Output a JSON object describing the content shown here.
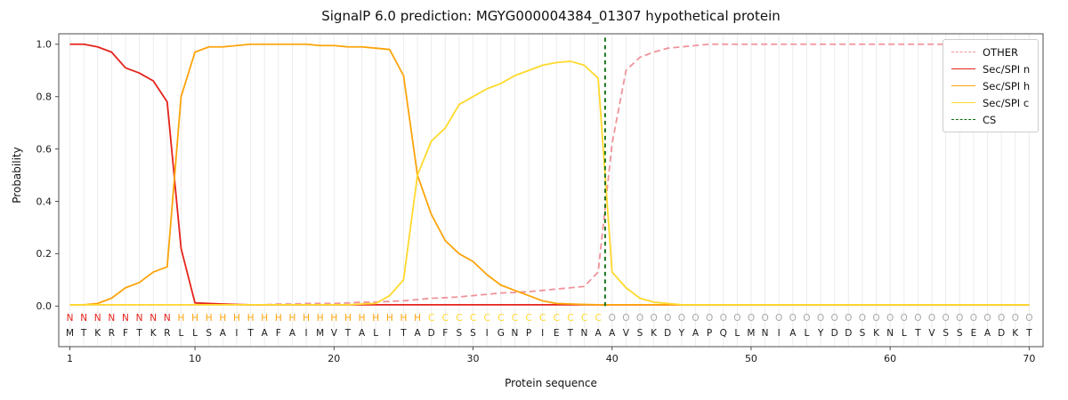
{
  "chart_data": {
    "type": "line",
    "title": "SignalP 6.0 prediction: MGYG000004384_01307 hypothetical protein",
    "xlabel": "Protein sequence",
    "ylabel": "Probability",
    "xlim": [
      0.2,
      71.0
    ],
    "ylim": [
      -0.155,
      1.04
    ],
    "xticks": [
      "1",
      "10",
      "20",
      "30",
      "40",
      "50",
      "60",
      "70"
    ],
    "yticks": [
      "0.0",
      "0.2",
      "0.4",
      "0.6",
      "0.8",
      "1.0"
    ],
    "grid": "vertical-per-residue",
    "legend_position": "upper right",
    "x": [
      1,
      2,
      3,
      4,
      5,
      6,
      7,
      8,
      9,
      10,
      11,
      12,
      13,
      14,
      15,
      16,
      17,
      18,
      19,
      20,
      21,
      22,
      23,
      24,
      25,
      26,
      27,
      28,
      29,
      30,
      31,
      32,
      33,
      34,
      35,
      36,
      37,
      38,
      39,
      40,
      41,
      42,
      43,
      44,
      45,
      46,
      47,
      48,
      49,
      50,
      51,
      52,
      53,
      54,
      55,
      56,
      57,
      58,
      59,
      60,
      61,
      62,
      63,
      64,
      65,
      66,
      67,
      68,
      69,
      70
    ],
    "series": [
      {
        "name": "OTHER",
        "color_key": "other",
        "style": "dashed",
        "values": [
          0.005,
          0.005,
          0.005,
          0.005,
          0.005,
          0.005,
          0.005,
          0.005,
          0.005,
          0.005,
          0.005,
          0.005,
          0.005,
          0.005,
          0.005,
          0.008,
          0.008,
          0.01,
          0.01,
          0.01,
          0.012,
          0.015,
          0.015,
          0.018,
          0.02,
          0.025,
          0.03,
          0.032,
          0.035,
          0.04,
          0.045,
          0.05,
          0.052,
          0.055,
          0.06,
          0.065,
          0.07,
          0.075,
          0.13,
          0.62,
          0.9,
          0.95,
          0.97,
          0.985,
          0.99,
          0.995,
          1.0,
          1.0,
          1.0,
          1.0,
          1.0,
          1.0,
          1.0,
          1.0,
          1.0,
          1.0,
          1.0,
          1.0,
          1.0,
          1.0,
          1.0,
          1.0,
          1.0,
          1.0,
          1.0,
          1.0,
          1.0,
          1.0,
          1.0,
          1.0
        ]
      },
      {
        "name": "Sec/SPI n",
        "color_key": "n",
        "style": "solid",
        "values": [
          1.0,
          1.0,
          0.99,
          0.97,
          0.91,
          0.89,
          0.86,
          0.78,
          0.22,
          0.012,
          0.01,
          0.008,
          0.006,
          0.005,
          0.005,
          0.005,
          0.005,
          0.005,
          0.005,
          0.005,
          0.005,
          0.005,
          0.005,
          0.005,
          0.005,
          0.005,
          0.005,
          0.005,
          0.005,
          0.005,
          0.005,
          0.005,
          0.005,
          0.005,
          0.005,
          0.005,
          0.005,
          0.005,
          0.005,
          0.005,
          0.005,
          0.005,
          0.005,
          0.005,
          0.005,
          0.005,
          0.005,
          0.005,
          0.005,
          0.005,
          0.005,
          0.005,
          0.005,
          0.005,
          0.005,
          0.005,
          0.005,
          0.005,
          0.005,
          0.005,
          0.005,
          0.005,
          0.005,
          0.005,
          0.005,
          0.005,
          0.005,
          0.005,
          0.005,
          0.005
        ]
      },
      {
        "name": "Sec/SPI h",
        "color_key": "h",
        "style": "solid",
        "values": [
          0.005,
          0.005,
          0.01,
          0.03,
          0.07,
          0.09,
          0.13,
          0.15,
          0.8,
          0.97,
          0.99,
          0.99,
          0.995,
          1.0,
          1.0,
          1.0,
          1.0,
          1.0,
          0.995,
          0.995,
          0.99,
          0.99,
          0.985,
          0.98,
          0.88,
          0.5,
          0.35,
          0.25,
          0.2,
          0.17,
          0.12,
          0.08,
          0.06,
          0.04,
          0.02,
          0.01,
          0.008,
          0.006,
          0.005,
          0.005,
          0.005,
          0.005,
          0.005,
          0.005,
          0.005,
          0.005,
          0.005,
          0.005,
          0.005,
          0.005,
          0.005,
          0.005,
          0.005,
          0.005,
          0.005,
          0.005,
          0.005,
          0.005,
          0.005,
          0.005,
          0.005,
          0.005,
          0.005,
          0.005,
          0.005,
          0.005,
          0.005,
          0.005,
          0.005,
          0.005
        ]
      },
      {
        "name": "Sec/SPI c",
        "color_key": "c",
        "style": "solid",
        "values": [
          0.005,
          0.005,
          0.005,
          0.005,
          0.005,
          0.005,
          0.005,
          0.005,
          0.005,
          0.005,
          0.005,
          0.005,
          0.005,
          0.005,
          0.005,
          0.005,
          0.005,
          0.005,
          0.005,
          0.005,
          0.005,
          0.008,
          0.01,
          0.04,
          0.1,
          0.5,
          0.63,
          0.68,
          0.77,
          0.8,
          0.83,
          0.85,
          0.88,
          0.9,
          0.92,
          0.93,
          0.935,
          0.92,
          0.87,
          0.13,
          0.07,
          0.03,
          0.015,
          0.01,
          0.005,
          0.005,
          0.005,
          0.005,
          0.005,
          0.005,
          0.005,
          0.005,
          0.005,
          0.005,
          0.005,
          0.005,
          0.005,
          0.005,
          0.005,
          0.005,
          0.005,
          0.005,
          0.005,
          0.005,
          0.005,
          0.005,
          0.005,
          0.005,
          0.005,
          0.005
        ]
      }
    ],
    "cs_line": {
      "name": "CS",
      "x": 39.5,
      "style": "dashed",
      "color_key": "cs"
    },
    "sequence": "MTKRFTKRLLSAITAFAIMVTALITADFSSIGNPIETNAAVSKDYAPQLMNIALYDDSKNLTVSSEADKT",
    "regions": "NNNNNNNNHHHHHHHHHHHHHHHHHHCCCCCCCCCCCCCOOOOOOOOOOOOOOOOOOOOOOOOOOOOOOO"
  },
  "colors": {
    "other": "#f0939b",
    "n": "#e5231b",
    "h": "#fca40a",
    "c": "#ffd92c",
    "cs": "#0b6b0b",
    "region_o": "#a8a8a8",
    "sequence_text": "#1a1a1a",
    "grid": "#ececec",
    "axis": "#4d4d4d",
    "tick_text": "#1a1a1a"
  }
}
